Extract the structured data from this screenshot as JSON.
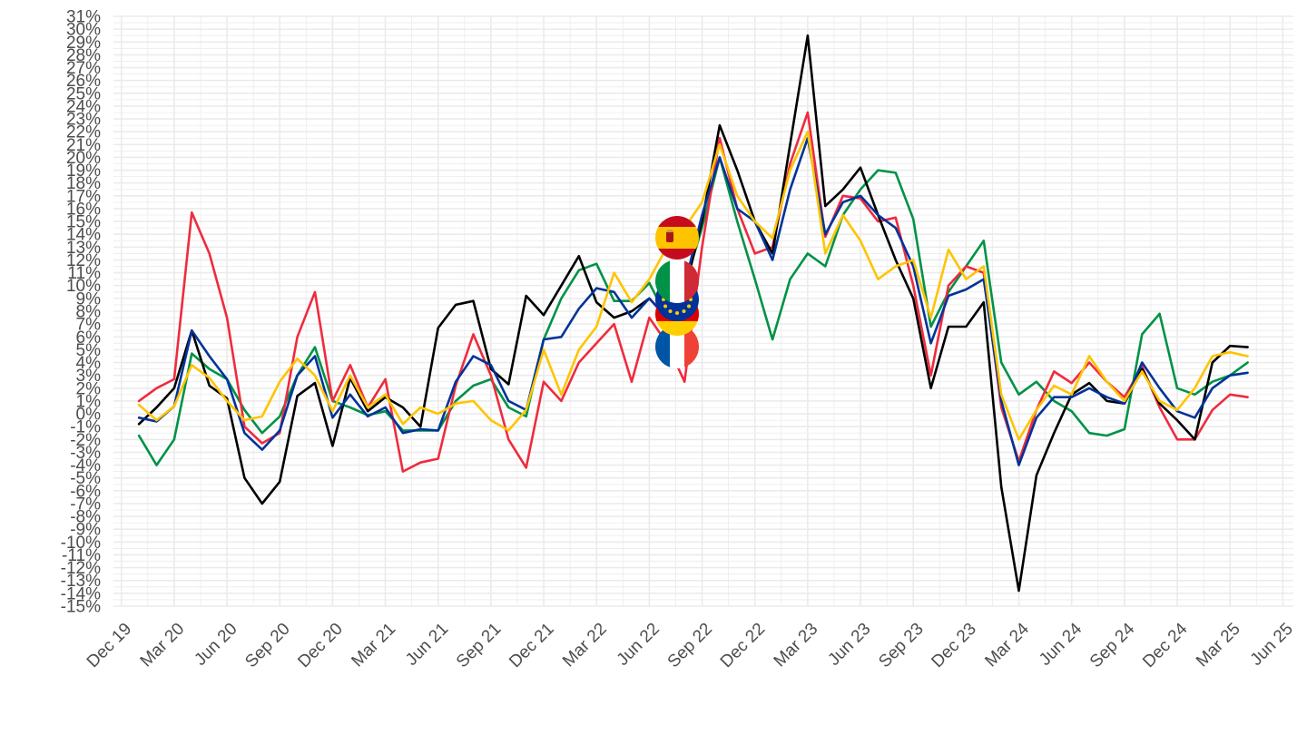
{
  "chart_data": {
    "type": "line",
    "title": "",
    "xlabel": "",
    "ylabel": "",
    "grid": true,
    "legend": "flag icons near series lines (center)",
    "y_range": [
      -15,
      31
    ],
    "y_ticks": [
      -15,
      -14,
      -13,
      -12,
      -11,
      -10,
      -9,
      -8,
      -7,
      -6,
      -5,
      -4,
      -3,
      -2,
      -1,
      0,
      1,
      2,
      3,
      4,
      5,
      6,
      7,
      8,
      9,
      10,
      11,
      12,
      13,
      14,
      15,
      16,
      17,
      18,
      19,
      20,
      21,
      22,
      23,
      24,
      25,
      26,
      27,
      28,
      29,
      30,
      31
    ],
    "y_tick_suffix": "%",
    "x_range": [
      "2019-11",
      "2025-07"
    ],
    "x_ticks": [
      {
        "date": "2019-12",
        "label": "Dec 19"
      },
      {
        "date": "2020-03",
        "label": "Mar 20"
      },
      {
        "date": "2020-06",
        "label": "Jun 20"
      },
      {
        "date": "2020-09",
        "label": "Sep 20"
      },
      {
        "date": "2020-12",
        "label": "Dec 20"
      },
      {
        "date": "2021-03",
        "label": "Mar 21"
      },
      {
        "date": "2021-06",
        "label": "Jun 21"
      },
      {
        "date": "2021-09",
        "label": "Sep 21"
      },
      {
        "date": "2021-12",
        "label": "Dec 21"
      },
      {
        "date": "2022-03",
        "label": "Mar 22"
      },
      {
        "date": "2022-06",
        "label": "Jun 22"
      },
      {
        "date": "2022-09",
        "label": "Sep 22"
      },
      {
        "date": "2022-12",
        "label": "Dec 22"
      },
      {
        "date": "2023-03",
        "label": "Mar 23"
      },
      {
        "date": "2023-06",
        "label": "Jun 23"
      },
      {
        "date": "2023-09",
        "label": "Sep 23"
      },
      {
        "date": "2023-12",
        "label": "Dec 23"
      },
      {
        "date": "2024-03",
        "label": "Mar 24"
      },
      {
        "date": "2024-06",
        "label": "Jun 24"
      },
      {
        "date": "2024-09",
        "label": "Sep 24"
      },
      {
        "date": "2024-12",
        "label": "Dec 24"
      },
      {
        "date": "2025-03",
        "label": "Mar 25"
      },
      {
        "date": "2025-06",
        "label": "Jun 25"
      }
    ],
    "x": [
      "2020-01",
      "2020-02",
      "2020-03",
      "2020-04",
      "2020-05",
      "2020-06",
      "2020-07",
      "2020-08",
      "2020-09",
      "2020-10",
      "2020-11",
      "2020-12",
      "2021-01",
      "2021-02",
      "2021-03",
      "2021-04",
      "2021-05",
      "2021-06",
      "2021-07",
      "2021-08",
      "2021-09",
      "2021-10",
      "2021-11",
      "2021-12",
      "2022-01",
      "2022-02",
      "2022-03",
      "2022-04",
      "2022-05",
      "2022-06",
      "2022-07",
      "2022-08",
      "2022-09",
      "2022-10",
      "2022-11",
      "2022-12",
      "2023-01",
      "2023-02",
      "2023-03",
      "2023-04",
      "2023-05",
      "2023-06",
      "2023-07",
      "2023-08",
      "2023-09",
      "2023-10",
      "2023-11",
      "2023-12",
      "2024-01",
      "2024-02",
      "2024-03",
      "2024-04",
      "2024-05",
      "2024-06",
      "2024-07",
      "2024-08",
      "2024-09",
      "2024-10",
      "2024-11",
      "2024-12",
      "2025-01",
      "2025-02",
      "2025-03",
      "2025-04"
    ],
    "series": [
      {
        "color": "#000000",
        "flag": "germany-flag-icon",
        "values": [
          -0.8,
          0.5,
          2.0,
          6.5,
          2.2,
          1.2,
          -5.0,
          -7.0,
          -5.3,
          1.4,
          2.4,
          -2.5,
          2.8,
          0.2,
          1.3,
          0.5,
          -1.0,
          6.7,
          8.5,
          8.8,
          3.5,
          2.3,
          9.2,
          7.7,
          10.0,
          12.3,
          8.7,
          7.5,
          8.0,
          9.0,
          7.5,
          9.5,
          15.0,
          22.5,
          19.0,
          15.0,
          12.5,
          21.0,
          29.5,
          16.2,
          17.5,
          19.2,
          15.5,
          12.0,
          9.0,
          2.0,
          6.8,
          6.8,
          8.7,
          -5.7,
          -13.8,
          -4.8,
          -1.5,
          1.5,
          2.4,
          1.0,
          0.8,
          3.5,
          0.8,
          -0.5,
          -2.0,
          4.0,
          5.3,
          5.2
        ]
      },
      {
        "color": "#003399",
        "flag": "european-union-flag-icon",
        "values": [
          -0.3,
          -0.6,
          0.6,
          6.5,
          4.5,
          2.7,
          -1.5,
          -2.8,
          -1.3,
          3.0,
          4.5,
          -0.3,
          1.5,
          -0.2,
          0.5,
          -1.5,
          -1.2,
          -1.3,
          2.5,
          4.5,
          3.8,
          1.0,
          0.3,
          5.8,
          6.0,
          8.2,
          9.8,
          9.5,
          7.5,
          9.0,
          7.5,
          10.0,
          15.5,
          20.0,
          16.0,
          15.0,
          12.0,
          17.5,
          21.5,
          14.0,
          16.5,
          17.0,
          15.5,
          14.5,
          11.5,
          5.5,
          9.2,
          9.7,
          10.5,
          1.0,
          -4.0,
          -0.3,
          1.3,
          1.3,
          2.0,
          1.3,
          0.8,
          4.0,
          2.0,
          0.2,
          -0.3,
          2.0,
          3.0,
          3.2
        ]
      },
      {
        "color": "#009246",
        "flag": "italy-flag-icon",
        "values": [
          -1.7,
          -4.0,
          -2.0,
          4.7,
          3.5,
          2.7,
          0.3,
          -1.5,
          -0.2,
          3.0,
          5.2,
          1.0,
          0.5,
          -0.1,
          0.2,
          -1.3,
          -1.3,
          -1.3,
          1.0,
          2.2,
          2.7,
          0.5,
          -0.2,
          5.8,
          9.0,
          11.2,
          11.7,
          8.8,
          8.8,
          10.2,
          7.5,
          10.0,
          14.5,
          20.0,
          15.0,
          10.5,
          5.8,
          10.5,
          12.5,
          11.5,
          15.5,
          17.5,
          19.0,
          18.8,
          15.2,
          6.8,
          9.5,
          11.5,
          13.5,
          4.0,
          1.5,
          2.5,
          1.0,
          0.2,
          -1.5,
          -1.7,
          -1.2,
          6.2,
          7.8,
          2.0,
          1.5,
          2.5,
          3.0,
          4.0
        ]
      },
      {
        "color": "#ef2b3e",
        "flag": "france-flag-icon",
        "values": [
          1.0,
          2.0,
          2.7,
          15.7,
          12.5,
          7.5,
          -1.0,
          -2.3,
          -1.5,
          6.0,
          9.5,
          1.0,
          3.8,
          0.5,
          2.7,
          -4.5,
          -3.8,
          -3.5,
          2.2,
          6.2,
          3.0,
          -2.0,
          -4.2,
          2.5,
          1.0,
          4.0,
          5.5,
          7.0,
          2.5,
          7.5,
          5.5,
          2.5,
          13.0,
          21.5,
          16.0,
          12.5,
          13.0,
          19.5,
          23.5,
          13.8,
          17.0,
          16.8,
          15.0,
          15.3,
          10.0,
          3.0,
          10.0,
          11.5,
          11.0,
          0.5,
          -3.7,
          0.3,
          3.3,
          2.4,
          4.0,
          2.5,
          1.3,
          3.7,
          0.5,
          -2.0,
          -2.0,
          0.3,
          1.5,
          1.3
        ]
      },
      {
        "color": "#ffc400",
        "flag": "spain-flag-icon",
        "values": [
          0.7,
          -0.5,
          0.6,
          3.8,
          2.8,
          1.0,
          -0.5,
          -0.2,
          2.5,
          4.3,
          3.0,
          0.2,
          3.0,
          0.5,
          1.5,
          -0.8,
          0.5,
          0.0,
          0.8,
          1.0,
          -0.5,
          -1.3,
          0.3,
          5.0,
          1.5,
          5.0,
          6.8,
          11.0,
          8.7,
          10.5,
          13.0,
          14.5,
          16.5,
          21.0,
          17.0,
          15.0,
          13.7,
          19.0,
          22.0,
          12.5,
          15.5,
          13.5,
          10.5,
          11.5,
          12.0,
          7.5,
          12.8,
          10.5,
          11.5,
          1.5,
          -2.0,
          0.3,
          2.2,
          1.5,
          4.5,
          2.5,
          1.0,
          3.3,
          1.0,
          0.3,
          2.0,
          4.5,
          4.8,
          4.5
        ]
      }
    ]
  }
}
